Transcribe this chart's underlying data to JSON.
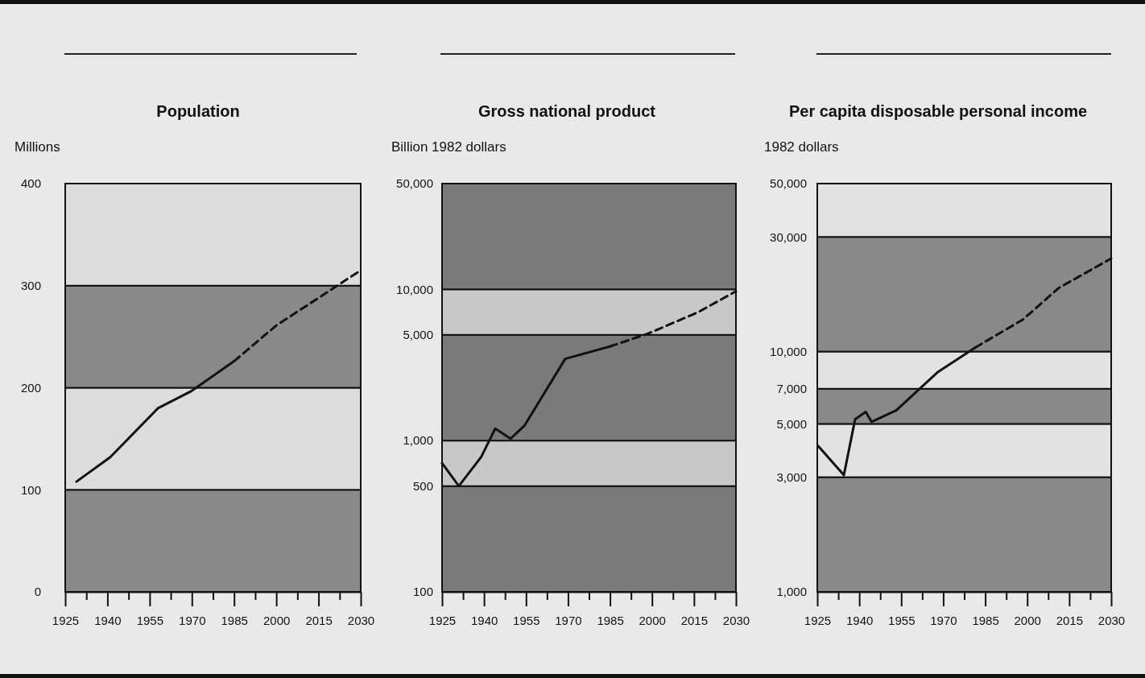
{
  "chart_data": [
    {
      "type": "line",
      "title": "Population",
      "ylabel": "Millions",
      "xlim": [
        1925,
        2030
      ],
      "ylim": [
        0,
        400
      ],
      "xticks": [
        1925,
        {
          "value": 1932.5,
          "label": null
        },
        1940,
        {
          "value": 1947.5,
          "label": null
        },
        1955,
        {
          "value": 1962.5,
          "label": null
        },
        1970,
        {
          "value": 1977.5,
          "label": null
        },
        1985,
        {
          "value": 1992.5,
          "label": null
        },
        2000,
        {
          "value": 2007.5,
          "label": null
        },
        2015,
        {
          "value": 2022.5,
          "label": null
        },
        2030
      ],
      "yticks": [
        0,
        100,
        200,
        300,
        400
      ],
      "bands": [
        {
          "axis": "y",
          "from": 0,
          "to": 100,
          "color": "#898989"
        },
        {
          "axis": "y",
          "from": 100,
          "to": 200,
          "color": "#dcdcdc"
        },
        {
          "axis": "y",
          "from": 200,
          "to": 300,
          "color": "#898989"
        },
        {
          "axis": "y",
          "from": 300,
          "to": 400,
          "color": "#dcdcdc"
        }
      ],
      "series": [
        {
          "color": "#111111",
          "line_style": "solid",
          "x": [
            1929,
            1941,
            1958,
            1970,
            1985
          ],
          "values": [
            108,
            132,
            180,
            197,
            226
          ]
        },
        {
          "color": "#111111",
          "line_style": "dashed",
          "x": [
            1985,
            2000,
            2020,
            2030
          ],
          "values": [
            226,
            261,
            297,
            315
          ]
        }
      ]
    },
    {
      "type": "line",
      "title": "Gross national product",
      "ylabel": "Billion 1982 dollars",
      "log": true,
      "xlim": [
        1925,
        2030
      ],
      "ylim": [
        100,
        50000
      ],
      "xticks": [
        1925,
        {
          "value": 1932.5,
          "label": null
        },
        1940,
        {
          "value": 1947.5,
          "label": null
        },
        1955,
        {
          "value": 1962.5,
          "label": null
        },
        1970,
        {
          "value": 1977.5,
          "label": null
        },
        1985,
        {
          "value": 1992.5,
          "label": null
        },
        2000,
        {
          "value": 2007.5,
          "label": null
        },
        2015,
        {
          "value": 2022.5,
          "label": null
        },
        2030
      ],
      "yticks": [
        100,
        500,
        {
          "value": 1000,
          "label": "1,000"
        },
        {
          "value": 5000,
          "label": "5,000"
        },
        {
          "value": 10000,
          "label": "10,000"
        },
        {
          "value": 50000,
          "label": "50,000"
        }
      ],
      "bands": [
        {
          "axis": "y",
          "from": 100,
          "to": 500,
          "color": "#7a7a7a"
        },
        {
          "axis": "y",
          "from": 500,
          "to": 1000,
          "color": "#c8c8c8"
        },
        {
          "axis": "y",
          "from": 1000,
          "to": 5000,
          "color": "#7a7a7a"
        },
        {
          "axis": "y",
          "from": 5000,
          "to": 10000,
          "color": "#c8c8c8"
        },
        {
          "axis": "y",
          "from": 10000,
          "to": 50000,
          "color": "#7a7a7a"
        }
      ],
      "series": [
        {
          "color": "#111111",
          "line_style": "solid",
          "x": [
            1925,
            1931,
            1939,
            1944,
            1949.5,
            1954.5,
            1969,
            1985
          ],
          "values": [
            710,
            500,
            780,
            1200,
            1030,
            1260,
            3470,
            4190
          ]
        },
        {
          "color": "#111111",
          "line_style": "dashed",
          "x": [
            1985,
            1998.5,
            2016.5,
            2030
          ],
          "values": [
            4190,
            5090,
            7060,
            9700
          ]
        }
      ]
    },
    {
      "type": "line",
      "title": "Per capita disposable personal income",
      "ylabel": "1982 dollars",
      "log": true,
      "xlim": [
        1925,
        2030
      ],
      "ylim": [
        1000,
        50000
      ],
      "xticks": [
        1925,
        {
          "value": 1932.5,
          "label": null
        },
        1940,
        {
          "value": 1947.5,
          "label": null
        },
        1955,
        {
          "value": 1962.5,
          "label": null
        },
        1970,
        {
          "value": 1977.5,
          "label": null
        },
        1985,
        {
          "value": 1992.5,
          "label": null
        },
        2000,
        {
          "value": 2007.5,
          "label": null
        },
        2015,
        {
          "value": 2022.5,
          "label": null
        },
        2030
      ],
      "yticks": [
        {
          "value": 1000,
          "label": "1,000"
        },
        {
          "value": 3000,
          "label": "3,000"
        },
        {
          "value": 5000,
          "label": "5,000"
        },
        {
          "value": 7000,
          "label": "7,000"
        },
        {
          "value": 10000,
          "label": "10,000"
        },
        {
          "value": 30000,
          "label": "30,000"
        },
        {
          "value": 50000,
          "label": "50,000"
        }
      ],
      "bands": [
        {
          "axis": "y",
          "from": 1000,
          "to": 3000,
          "color": "#898989"
        },
        {
          "axis": "y",
          "from": 3000,
          "to": 5000,
          "color": "#e2e2e2"
        },
        {
          "axis": "y",
          "from": 5000,
          "to": 7000,
          "color": "#898989"
        },
        {
          "axis": "y",
          "from": 7000,
          "to": 10000,
          "color": "#e2e2e2"
        },
        {
          "axis": "y",
          "from": 10000,
          "to": 30000,
          "color": "#898989"
        },
        {
          "axis": "y",
          "from": 30000,
          "to": 50000,
          "color": "#e2e2e2"
        }
      ],
      "series": [
        {
          "color": "#111111",
          "line_style": "solid",
          "x": [
            1925.3,
            1934.5,
            1938.5,
            1942.3,
            1944.4,
            1953.2,
            1968.2,
            1981.5
          ],
          "values": [
            4050,
            3060,
            5220,
            5610,
            5100,
            5690,
            8240,
            10400
          ]
        },
        {
          "color": "#111111",
          "line_style": "dashed",
          "x": [
            1981.5,
            1998.5,
            2011.3,
            2018.8,
            2030
          ],
          "values": [
            10400,
            13600,
            18400,
            20600,
            24400
          ]
        }
      ]
    }
  ]
}
